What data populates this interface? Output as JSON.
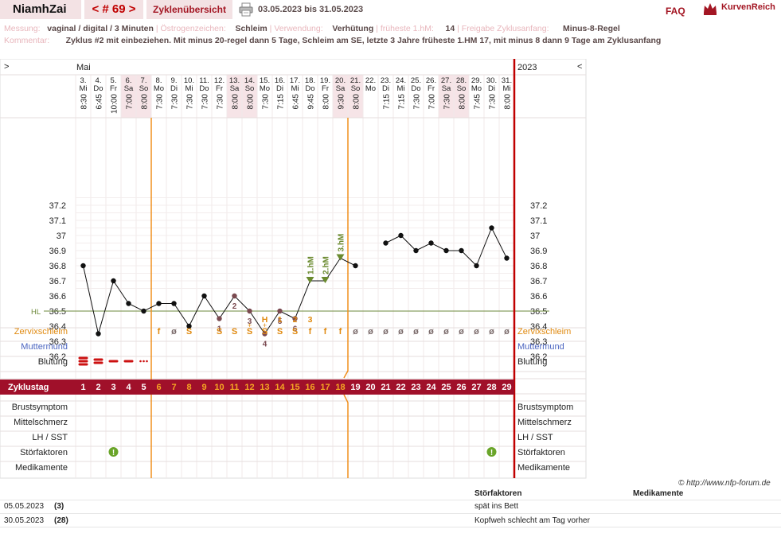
{
  "header": {
    "user": "NiamhZai",
    "cycle_nav": "< # 69 >",
    "overview_tab": "Zyklenübersicht",
    "date_range": "03.05.2023 bis 31.05.2023",
    "faq": "FAQ",
    "brand": "KurvenReich"
  },
  "meta": {
    "row1": [
      {
        "label": "Messung:",
        "value": "vaginal / digital / 3 Minuten"
      },
      {
        "label": "Östrogenzeichen:",
        "value": "Schleim"
      },
      {
        "label": "Verwendung:",
        "value": "Verhütung"
      },
      {
        "label": "früheste 1.hM:",
        "value": "14"
      },
      {
        "label": "Freigabe Zyklusanfang:",
        "value": "Minus-8-Regel"
      }
    ],
    "comment_label": "Kommentar:",
    "comment": "Zyklus #2  mit einbeziehen. Mit minus 20-regel dann 5 Tage,  Schleim am SE, letzte 3 Jahre früheste 1.HM 17, mit minus 8 dann 9 Tage am Zyklusanfang"
  },
  "chart_data": {
    "type": "line",
    "month": "Mai",
    "year": "2023",
    "nav_left": ">",
    "nav_right": "<",
    "days": [
      {
        "d": "3.",
        "w": "Mi",
        "t": "8:30",
        "temp": 36.8,
        "cd": "1",
        "we": false
      },
      {
        "d": "4.",
        "w": "Do",
        "t": "6:45",
        "temp": 36.35,
        "cd": "2",
        "we": false
      },
      {
        "d": "5.",
        "w": "Fr",
        "t": "10:00",
        "temp": 36.7,
        "cd": "3",
        "we": false
      },
      {
        "d": "6.",
        "w": "Sa",
        "t": "7:00",
        "temp": 36.55,
        "cd": "4",
        "we": true
      },
      {
        "d": "7.",
        "w": "So",
        "t": "8:00",
        "temp": 36.5,
        "cd": "5",
        "we": true
      },
      {
        "d": "8.",
        "w": "Mo",
        "t": "7:30",
        "temp": 36.55,
        "cd": "6",
        "we": false
      },
      {
        "d": "9.",
        "w": "Di",
        "t": "7:30",
        "temp": 36.55,
        "cd": "7",
        "we": false
      },
      {
        "d": "10.",
        "w": "Mi",
        "t": "7:30",
        "temp": 36.4,
        "cd": "8",
        "we": false
      },
      {
        "d": "11.",
        "w": "Do",
        "t": "7:30",
        "temp": 36.6,
        "cd": "9",
        "we": false
      },
      {
        "d": "12.",
        "w": "Fr",
        "t": "7:30",
        "temp": 36.45,
        "cd": "10",
        "we": false
      },
      {
        "d": "13.",
        "w": "Sa",
        "t": "8:00",
        "temp": 36.6,
        "cd": "11",
        "we": true
      },
      {
        "d": "14.",
        "w": "So",
        "t": "8:00",
        "temp": 36.5,
        "cd": "12",
        "we": true
      },
      {
        "d": "15.",
        "w": "Mo",
        "t": "7:30",
        "temp": 36.35,
        "cd": "13",
        "we": false
      },
      {
        "d": "16.",
        "w": "Di",
        "t": "7:15",
        "temp": 36.5,
        "cd": "14",
        "we": false
      },
      {
        "d": "17.",
        "w": "Mi",
        "t": "6:45",
        "temp": 36.45,
        "cd": "15",
        "we": false
      },
      {
        "d": "18.",
        "w": "Do",
        "t": "9:45",
        "temp": 36.7,
        "cd": "16",
        "we": false
      },
      {
        "d": "19.",
        "w": "Fr",
        "t": "8:00",
        "temp": 36.7,
        "cd": "17",
        "we": false
      },
      {
        "d": "20.",
        "w": "Sa",
        "t": "9:30",
        "temp": 36.85,
        "cd": "18",
        "we": true
      },
      {
        "d": "21.",
        "w": "So",
        "t": "8:00",
        "temp": 36.8,
        "cd": "19",
        "we": true
      },
      {
        "d": "22.",
        "w": "Mo",
        "t": "",
        "temp": null,
        "cd": "20",
        "we": false
      },
      {
        "d": "23.",
        "w": "Di",
        "t": "7:15",
        "temp": 36.95,
        "cd": "21",
        "we": false
      },
      {
        "d": "24.",
        "w": "Mi",
        "t": "7:15",
        "temp": 37.0,
        "cd": "22",
        "we": false
      },
      {
        "d": "25.",
        "w": "Do",
        "t": "7:30",
        "temp": 36.9,
        "cd": "23",
        "we": false
      },
      {
        "d": "26.",
        "w": "Fr",
        "t": "7:00",
        "temp": 36.95,
        "cd": "24",
        "we": false
      },
      {
        "d": "27.",
        "w": "Sa",
        "t": "7:30",
        "temp": 36.9,
        "cd": "25",
        "we": true
      },
      {
        "d": "28.",
        "w": "So",
        "t": "8:00",
        "temp": 36.9,
        "cd": "26",
        "we": true
      },
      {
        "d": "29.",
        "w": "Mo",
        "t": "7:45",
        "temp": 36.8,
        "cd": "27",
        "we": false
      },
      {
        "d": "30.",
        "w": "Di",
        "t": "7:30",
        "temp": 37.05,
        "cd": "28",
        "we": false
      },
      {
        "d": "31.",
        "w": "Mi",
        "t": "8:00",
        "temp": 36.85,
        "cd": "29",
        "we": false
      }
    ],
    "y_ticks": [
      "37.2",
      "37.1",
      "37",
      "36.9",
      "36.8",
      "36.7",
      "36.6",
      "36.5",
      "36.4",
      "36.3",
      "36.2"
    ],
    "ylim": [
      36.1,
      37.3
    ],
    "hl_label": "HL",
    "hl_value": 36.5,
    "low_labels": [
      {
        "day": 9,
        "text": "1"
      },
      {
        "day": 10,
        "text": "2"
      },
      {
        "day": 11,
        "text": "3"
      },
      {
        "day": 12,
        "text": "4"
      },
      {
        "day": 13,
        "text": "5"
      },
      {
        "day": 14,
        "text": "6"
      }
    ],
    "hm_labels": [
      {
        "day": 15,
        "text": "1.hM"
      },
      {
        "day": 16,
        "text": "2.hM"
      },
      {
        "day": 17,
        "text": "3.hM"
      }
    ],
    "peak_labels": [
      {
        "day": 12,
        "text": "H"
      },
      {
        "day": 13,
        "text": "1"
      },
      {
        "day": 14,
        "text": "2"
      },
      {
        "day": 15,
        "text": "3"
      }
    ],
    "cervix": [
      "",
      "",
      "",
      "",
      "",
      "f",
      "ø",
      "S",
      "",
      "S",
      "S",
      "S̈",
      "S̈",
      "S",
      "S",
      "f",
      "f",
      "f",
      "ø",
      "ø",
      "ø",
      "ø",
      "ø",
      "ø",
      "ø",
      "ø",
      "ø",
      "ø",
      "ø"
    ],
    "cervix_plus": [
      11,
      12
    ],
    "bleeding": [
      "heavy",
      "medium",
      "light",
      "light",
      "spotting"
    ],
    "mittelschmerz_days": [
      13,
      14
    ],
    "stoerfaktor_days": [
      2,
      27
    ],
    "labels": {
      "cervix": "Zervixschleim",
      "muttermund": "Muttermund",
      "blutung": "Blutung",
      "zyklustag": "Zyklustag",
      "brust": "Brustsymptom",
      "mittel": "Mittelschmerz",
      "lh": "LH / SST",
      "stoer": "Störfaktoren",
      "medi": "Medikamente"
    }
  },
  "footer": {
    "copyright": "© http://www.nfp-forum.de",
    "col_stoer": "Störfaktoren",
    "col_medi": "Medikamente",
    "rows": [
      {
        "date": "05.05.2023",
        "cd": "(3)",
        "stoer": "spät ins Bett"
      },
      {
        "date": "30.05.2023",
        "cd": "(28)",
        "stoer": "Kopfweh schlecht am Tag vorher"
      }
    ]
  }
}
